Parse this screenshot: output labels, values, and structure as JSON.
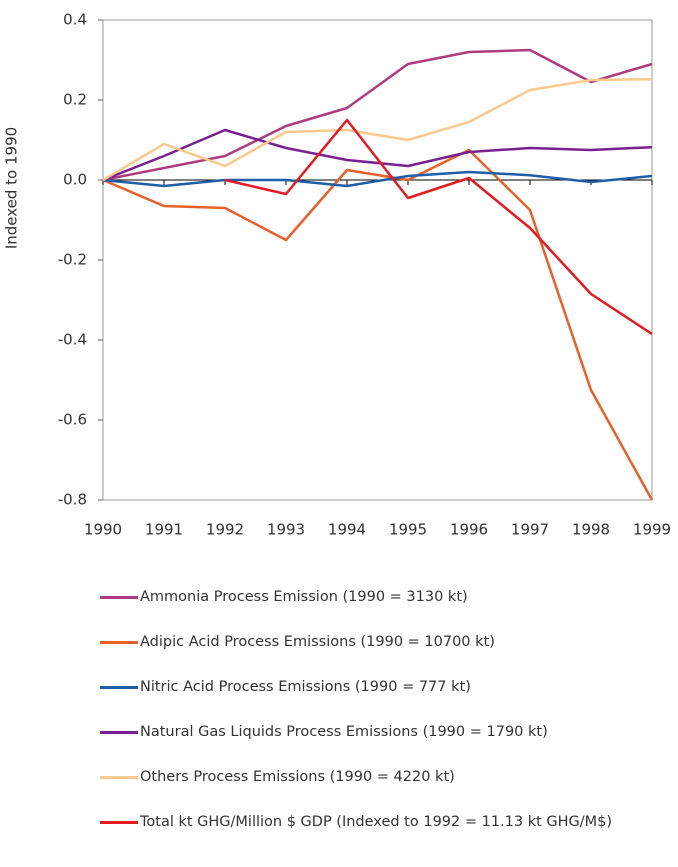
{
  "chart_data": {
    "type": "line",
    "y_label": "Indexed to 1990",
    "categories": [
      "1990",
      "1991",
      "1992",
      "1993",
      "1994",
      "1995",
      "1996",
      "1997",
      "1998",
      "1999"
    ],
    "ylim": [
      -0.8,
      0.4
    ],
    "yticks": [
      {
        "value": 0.4,
        "label": "0.4"
      },
      {
        "value": 0.2,
        "label": "0.2"
      },
      {
        "value": 0,
        "label": "0.0"
      },
      {
        "value": -0.2,
        "label": "-0.2"
      },
      {
        "value": -0.4,
        "label": "-0.4"
      },
      {
        "value": -0.6,
        "label": "-0.6"
      },
      {
        "value": -0.8,
        "label": "-0.8"
      }
    ],
    "series": [
      {
        "name": "Ammonia Process Emission (1990 = 3130 kt)",
        "color": "#b03a7f",
        "values": [
          0,
          0.03,
          0.06,
          0.135,
          0.18,
          0.29,
          0.32,
          0.325,
          0.245,
          0.29
        ]
      },
      {
        "name": "Adipic Acid Process Emissions (1990 = 10700 kt)",
        "color": "#e8602a",
        "values": [
          0,
          -0.065,
          -0.07,
          -0.15,
          0.025,
          0.0,
          0.075,
          -0.075,
          -0.525,
          -0.8
        ]
      },
      {
        "name": "Nitric Acid Process Emissions (1990 = 777 kt)",
        "color": "#1f5fa8",
        "values": [
          0,
          -0.015,
          0,
          0,
          -0.015,
          0.01,
          0.02,
          0.012,
          -0.005,
          0.01
        ]
      },
      {
        "name": "Natural Gas Liquids Process Emissions (1990 = 1790 kt)",
        "color": "#7a1f8f",
        "values": [
          0,
          0.06,
          0.125,
          0.08,
          0.05,
          0.035,
          0.07,
          0.08,
          0.075,
          0.082
        ]
      },
      {
        "name": "Others Process Emissions (1990 = 4220 kt)",
        "color": "#f9c98e",
        "values": [
          0,
          0.09,
          0.035,
          0.12,
          0.125,
          0.1,
          0.145,
          0.225,
          0.25,
          0.252
        ]
      },
      {
        "name": "Total kt GHG/Million $ GDP (Indexed to 1992 = 11.13 kt GHG/M$)",
        "color": "#e31b23",
        "values": [
          null,
          null,
          0,
          -0.035,
          0.15,
          -0.045,
          0.005,
          -0.12,
          -0.285,
          -0.385
        ]
      }
    ]
  }
}
